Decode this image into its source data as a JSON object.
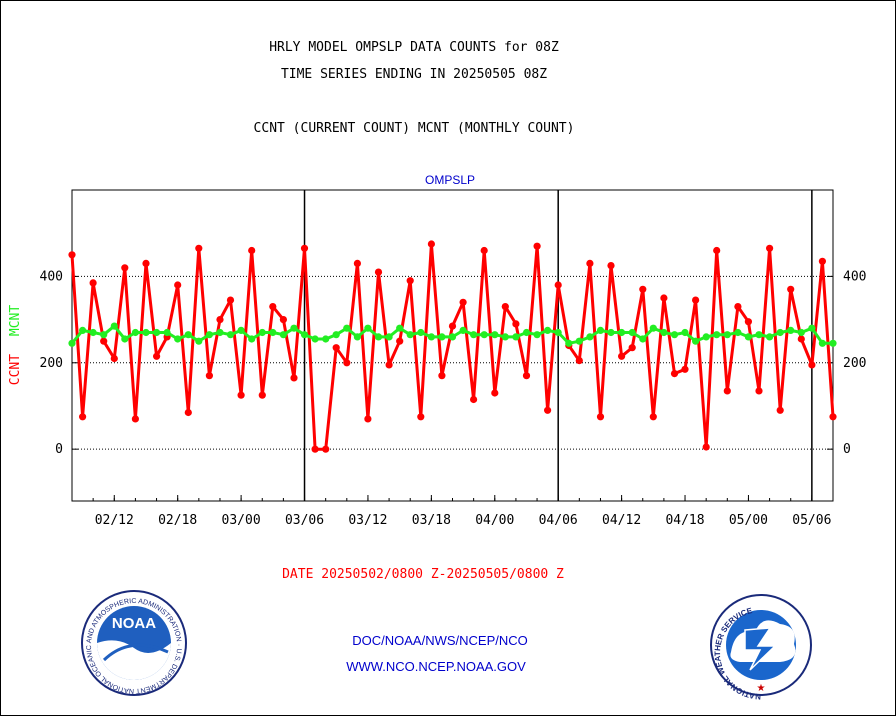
{
  "header": {
    "title_line1": "HRLY MODEL OMPSLP DATA COUNTS for 08Z",
    "title_line2": "TIME SERIES ENDING IN 20250505 08Z",
    "subtitle": "CCNT (CURRENT COUNT) MCNT (MONTHLY COUNT)"
  },
  "footer": {
    "date_range": "DATE 20250502/0800 Z-20250505/0800 Z",
    "agency": "DOC/NOAA/NWS/NCEP/NCO",
    "website": "WWW.NCO.NCEP.NOAA.GOV"
  },
  "logos": {
    "noaa_label": "NOAA",
    "noaa_ring_text": "NATIONAL OCEANIC AND ATMOSPHERIC ADMINISTRATION · U.S. DEPARTMENT OF COMMERCE ·",
    "nws_ring_text": "NATIONAL WEATHER SERVICE"
  },
  "colors": {
    "ccnt": "#ff0000",
    "mcnt": "#22ee22",
    "title": "#000000",
    "panel_label": "#0000cc",
    "date_text": "#ff0000",
    "footer_text": "#0000cc"
  },
  "chart_data": {
    "type": "line",
    "title": "OMPSLP",
    "ylabel_parts": [
      "CCNT",
      "MCNT"
    ],
    "ylim": [
      -120,
      600
    ],
    "yticks": [
      0,
      200,
      400
    ],
    "x_tick_labels": [
      "02/12",
      "02/18",
      "03/00",
      "03/06",
      "03/12",
      "03/18",
      "04/00",
      "04/06",
      "04/12",
      "04/18",
      "05/00",
      "05/06"
    ],
    "day_boundaries": [
      "03/06",
      "04/06",
      "05/06"
    ],
    "hgrid": [
      0,
      200,
      400
    ],
    "series": [
      {
        "name": "CCNT",
        "values": [
          450,
          75,
          385,
          250,
          210,
          420,
          70,
          430,
          215,
          260,
          380,
          85,
          465,
          170,
          300,
          345,
          125,
          460,
          125,
          330,
          300,
          165,
          465,
          0,
          0,
          235,
          200,
          430,
          70,
          410,
          195,
          250,
          390,
          75,
          475,
          170,
          285,
          340,
          115,
          460,
          130,
          330,
          290,
          170,
          470,
          90,
          380,
          240,
          205,
          430,
          75,
          425,
          215,
          235,
          370,
          75,
          350,
          175,
          185,
          345,
          5,
          460,
          135,
          330,
          295,
          135,
          465,
          90,
          370,
          255,
          195,
          435,
          75
        ]
      },
      {
        "name": "MCNT",
        "values": [
          245,
          275,
          270,
          265,
          285,
          255,
          270,
          270,
          270,
          270,
          255,
          265,
          250,
          265,
          270,
          265,
          275,
          255,
          270,
          270,
          265,
          280,
          265,
          255,
          255,
          265,
          280,
          260,
          280,
          260,
          260,
          280,
          265,
          270,
          260,
          260,
          260,
          275,
          265,
          265,
          265,
          260,
          260,
          270,
          265,
          275,
          270,
          245,
          250,
          260,
          275,
          270,
          270,
          270,
          255,
          280,
          270,
          265,
          270,
          250,
          260,
          265,
          265,
          270,
          260,
          265,
          260,
          270,
          275,
          270,
          280,
          245,
          245
        ]
      }
    ]
  }
}
